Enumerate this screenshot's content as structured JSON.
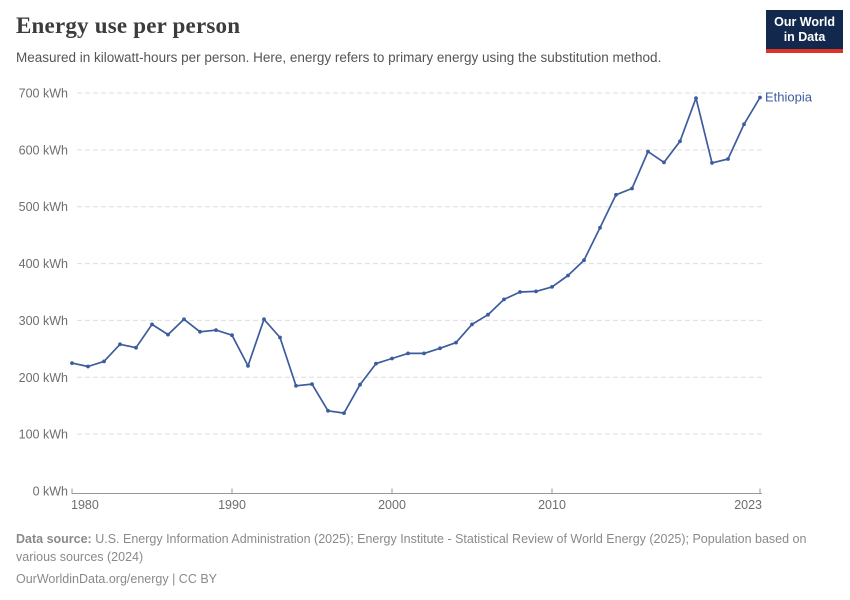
{
  "header": {
    "title": "Energy use per person",
    "subtitle": "Measured in kilowatt-hours per person. Here, energy refers to primary energy using the substitution method.",
    "logo": {
      "line1": "Our World",
      "line2": "in Data"
    }
  },
  "chart_data": {
    "type": "line",
    "title": "Energy use per person",
    "unit": "kWh",
    "entity": "Ethiopia",
    "xlim": [
      1980,
      2023
    ],
    "ylim": [
      0,
      700
    ],
    "grid": "dashed-horizontal",
    "legend_position": "end-of-line-label",
    "x": [
      1980,
      1981,
      1982,
      1983,
      1984,
      1985,
      1986,
      1987,
      1988,
      1989,
      1990,
      1991,
      1992,
      1993,
      1994,
      1995,
      1996,
      1997,
      1998,
      1999,
      2000,
      2001,
      2002,
      2003,
      2004,
      2005,
      2006,
      2007,
      2008,
      2009,
      2010,
      2011,
      2012,
      2013,
      2014,
      2015,
      2016,
      2017,
      2018,
      2019,
      2020,
      2021,
      2022,
      2023
    ],
    "series": [
      {
        "name": "Ethiopia",
        "values": [
          225,
          219,
          228,
          258,
          252,
          293,
          275,
          302,
          280,
          283,
          274,
          220,
          302,
          270,
          185,
          188,
          141,
          137,
          187,
          224,
          233,
          242,
          242,
          251,
          261,
          293,
          310,
          337,
          350,
          351,
          359,
          379,
          406,
          463,
          521,
          532,
          597,
          578,
          615,
          691,
          577,
          584,
          645,
          692
        ]
      }
    ],
    "y_ticks": [
      {
        "value": 0,
        "label": "0 kWh"
      },
      {
        "value": 100,
        "label": "100 kWh"
      },
      {
        "value": 200,
        "label": "200 kWh"
      },
      {
        "value": 300,
        "label": "300 kWh"
      },
      {
        "value": 400,
        "label": "400 kWh"
      },
      {
        "value": 500,
        "label": "500 kWh"
      },
      {
        "value": 600,
        "label": "600 kWh"
      },
      {
        "value": 700,
        "label": "700 kWh"
      }
    ],
    "x_ticks": [
      {
        "value": 1980,
        "label": "1980"
      },
      {
        "value": 1990,
        "label": "1990"
      },
      {
        "value": 2000,
        "label": "2000"
      },
      {
        "value": 2010,
        "label": "2010"
      },
      {
        "value": 2023,
        "label": "2023"
      }
    ]
  },
  "footer": {
    "source_label": "Data source:",
    "source_text": " U.S. Energy Information Administration (2025); Energy Institute - Statistical Review of World Energy (2025); Population based on various sources (2024)",
    "license_line": "OurWorldinData.org/energy | CC BY"
  },
  "colors": {
    "line": "#3d5c9e",
    "entity_label": "#3d5c9e",
    "logo_bg": "#12294d",
    "logo_stripe": "#dc3328",
    "grid": "#dddddd",
    "axis": "#999999",
    "tick_text": "#6e6e6e",
    "title_text": "#3c3c3c",
    "subtitle_text": "#555555",
    "footer_text": "#8a8a8a"
  }
}
